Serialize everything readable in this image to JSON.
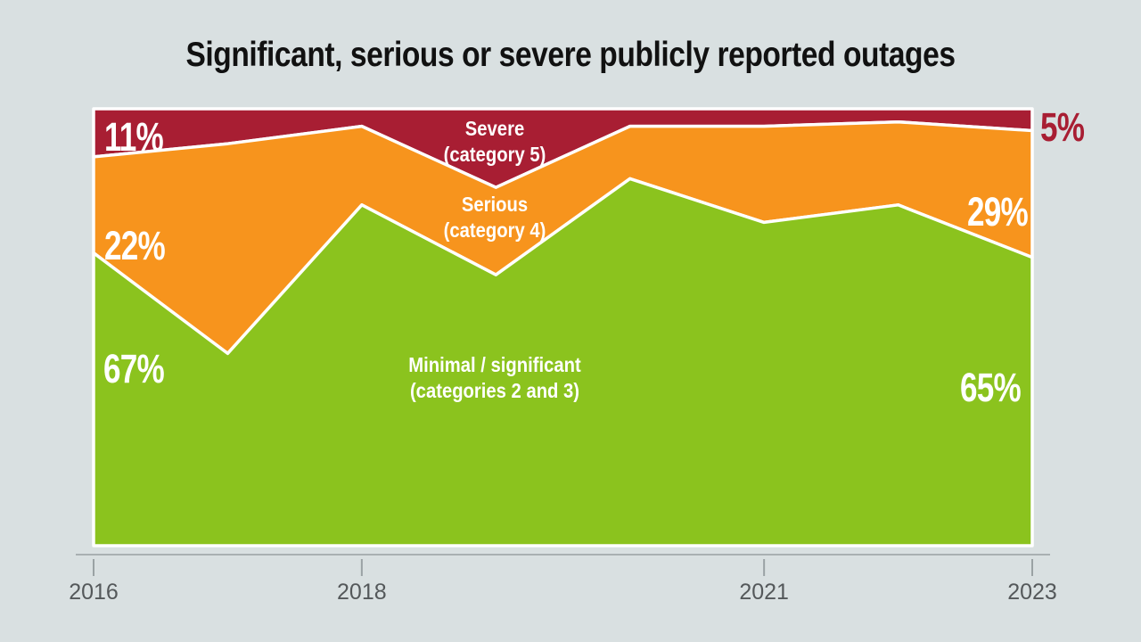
{
  "title": "Significant, serious or severe publicly reported outages",
  "colors": {
    "background": "#d9e0e1",
    "severe": "#a81e33",
    "serious": "#f7941d",
    "minimal": "#8bc31e",
    "boundary_line": "#ffffff",
    "axis_line": "#a9b0b2",
    "tick_mark": "#9aa2a4",
    "tick_label": "#54585a",
    "title_text": "#111111",
    "severe_value_label": "#a81e33"
  },
  "chart_data": {
    "type": "area",
    "stacking": "percent",
    "title": "Significant, serious or severe publicly reported outages",
    "x": [
      2016,
      2017,
      2018,
      2019,
      2020,
      2021,
      2022,
      2023
    ],
    "x_tick_labels": [
      "2016",
      "2018",
      "2021",
      "2023"
    ],
    "x_tick_years": [
      2016,
      2018,
      2021,
      2023
    ],
    "ylim": [
      0,
      100
    ],
    "grid": false,
    "legend": "in-plot labels",
    "series": [
      {
        "name": "Severe (category 5)",
        "color": "#a81e33",
        "values": [
          11,
          8,
          4,
          18,
          4,
          4,
          3,
          5
        ]
      },
      {
        "name": "Serious (category 4)",
        "color": "#f7941d",
        "values": [
          22,
          48,
          18,
          20,
          12,
          22,
          19,
          29
        ]
      },
      {
        "name": "Minimal / significant (categories 2 and 3)",
        "color": "#8bc31e",
        "values": [
          67,
          44,
          78,
          62,
          84,
          74,
          78,
          65
        ]
      }
    ]
  },
  "labels": {
    "severe_line1": "Severe",
    "severe_line2": "(category 5)",
    "serious_line1": "Serious",
    "serious_line2": "(category 4)",
    "minimal_line1": "Minimal / significant",
    "minimal_line2": "(categories 2 and 3)",
    "pct_2016_severe": "11%",
    "pct_2016_serious": "22%",
    "pct_2016_minimal": "67%",
    "pct_2023_severe": "5%",
    "pct_2023_serious": "29%",
    "pct_2023_minimal": "65%"
  }
}
